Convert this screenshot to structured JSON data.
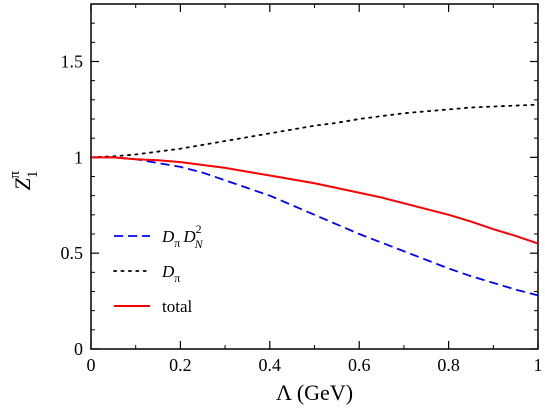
{
  "chart_data": {
    "type": "line",
    "title": "",
    "xlabel": "Λ (GeV)",
    "ylabel": "Z1π",
    "xlim": [
      0,
      1
    ],
    "ylim": [
      0,
      1.8
    ],
    "x_ticks": [
      0,
      0.2,
      0.4,
      0.6,
      0.8,
      1
    ],
    "x_tick_labels": [
      "0",
      "0.2",
      "0.4",
      "0.6",
      "0.8",
      "1"
    ],
    "y_ticks": [
      0,
      0.5,
      1,
      1.5
    ],
    "y_tick_labels": [
      "0",
      "0.5",
      "1",
      "1.5"
    ],
    "grid": false,
    "legend_position": "bottom-left",
    "series": [
      {
        "name": "DπDN2",
        "style": "dashed",
        "color": "#0000ff",
        "x": [
          0,
          0.05,
          0.1,
          0.15,
          0.2,
          0.25,
          0.3,
          0.35,
          0.4,
          0.45,
          0.5,
          0.55,
          0.6,
          0.65,
          0.7,
          0.75,
          0.8,
          0.85,
          0.9,
          0.95,
          1.0
        ],
        "y": [
          1.0,
          1.0,
          0.99,
          0.97,
          0.95,
          0.92,
          0.88,
          0.84,
          0.8,
          0.75,
          0.7,
          0.65,
          0.6,
          0.555,
          0.51,
          0.465,
          0.42,
          0.38,
          0.345,
          0.31,
          0.28
        ]
      },
      {
        "name": "Dπ",
        "style": "dotted",
        "color": "#000000",
        "x": [
          0,
          0.05,
          0.1,
          0.15,
          0.2,
          0.25,
          0.3,
          0.35,
          0.4,
          0.45,
          0.5,
          0.55,
          0.6,
          0.65,
          0.7,
          0.75,
          0.8,
          0.85,
          0.9,
          0.95,
          1.0
        ],
        "y": [
          1.0,
          1.005,
          1.015,
          1.03,
          1.045,
          1.065,
          1.085,
          1.105,
          1.125,
          1.145,
          1.165,
          1.18,
          1.2,
          1.215,
          1.23,
          1.24,
          1.25,
          1.26,
          1.265,
          1.27,
          1.275
        ]
      },
      {
        "name": "total",
        "style": "solid",
        "color": "#ff0000",
        "x": [
          0,
          0.05,
          0.1,
          0.15,
          0.2,
          0.25,
          0.3,
          0.35,
          0.4,
          0.45,
          0.5,
          0.55,
          0.6,
          0.65,
          0.7,
          0.75,
          0.8,
          0.85,
          0.9,
          0.95,
          1.0
        ],
        "y": [
          1.0,
          1.0,
          0.99,
          0.985,
          0.975,
          0.96,
          0.945,
          0.925,
          0.905,
          0.885,
          0.865,
          0.84,
          0.815,
          0.79,
          0.76,
          0.73,
          0.7,
          0.665,
          0.625,
          0.59,
          0.55
        ]
      }
    ],
    "legend": {
      "entries": [
        {
          "main": "D",
          "sub1": "π",
          "main2": "D",
          "sub2": "N",
          "sup2": "2"
        },
        {
          "main": "D",
          "sub1": "π"
        },
        {
          "main": "total"
        }
      ]
    },
    "ylabel_parts": {
      "main": "Z",
      "sub": "1",
      "sup": "π"
    },
    "xlabel_text": "Λ (GeV)"
  }
}
